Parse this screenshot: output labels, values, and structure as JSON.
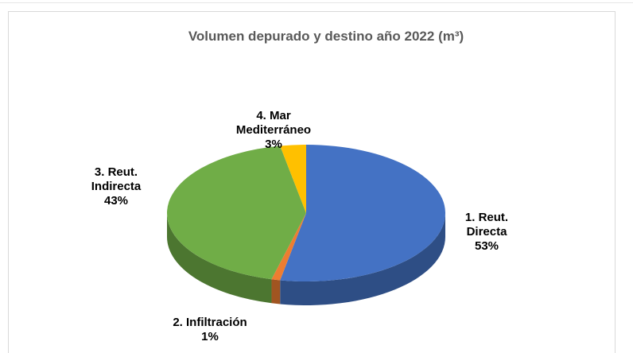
{
  "chart_data": {
    "type": "pie",
    "title": "Volumen depurado y destino año 2022 (m³)",
    "categories": [
      "1. Reut. Directa",
      "2. Infiltración",
      "3. Reut. Indirecta",
      "4. Mar Mediterráneo"
    ],
    "values": [
      53,
      1,
      43,
      3
    ],
    "value_labels": [
      "53%",
      "1%",
      "43%",
      "3%"
    ],
    "colors": [
      "#4472c4",
      "#ed7d31",
      "#70ad47",
      "#ffc000"
    ]
  }
}
